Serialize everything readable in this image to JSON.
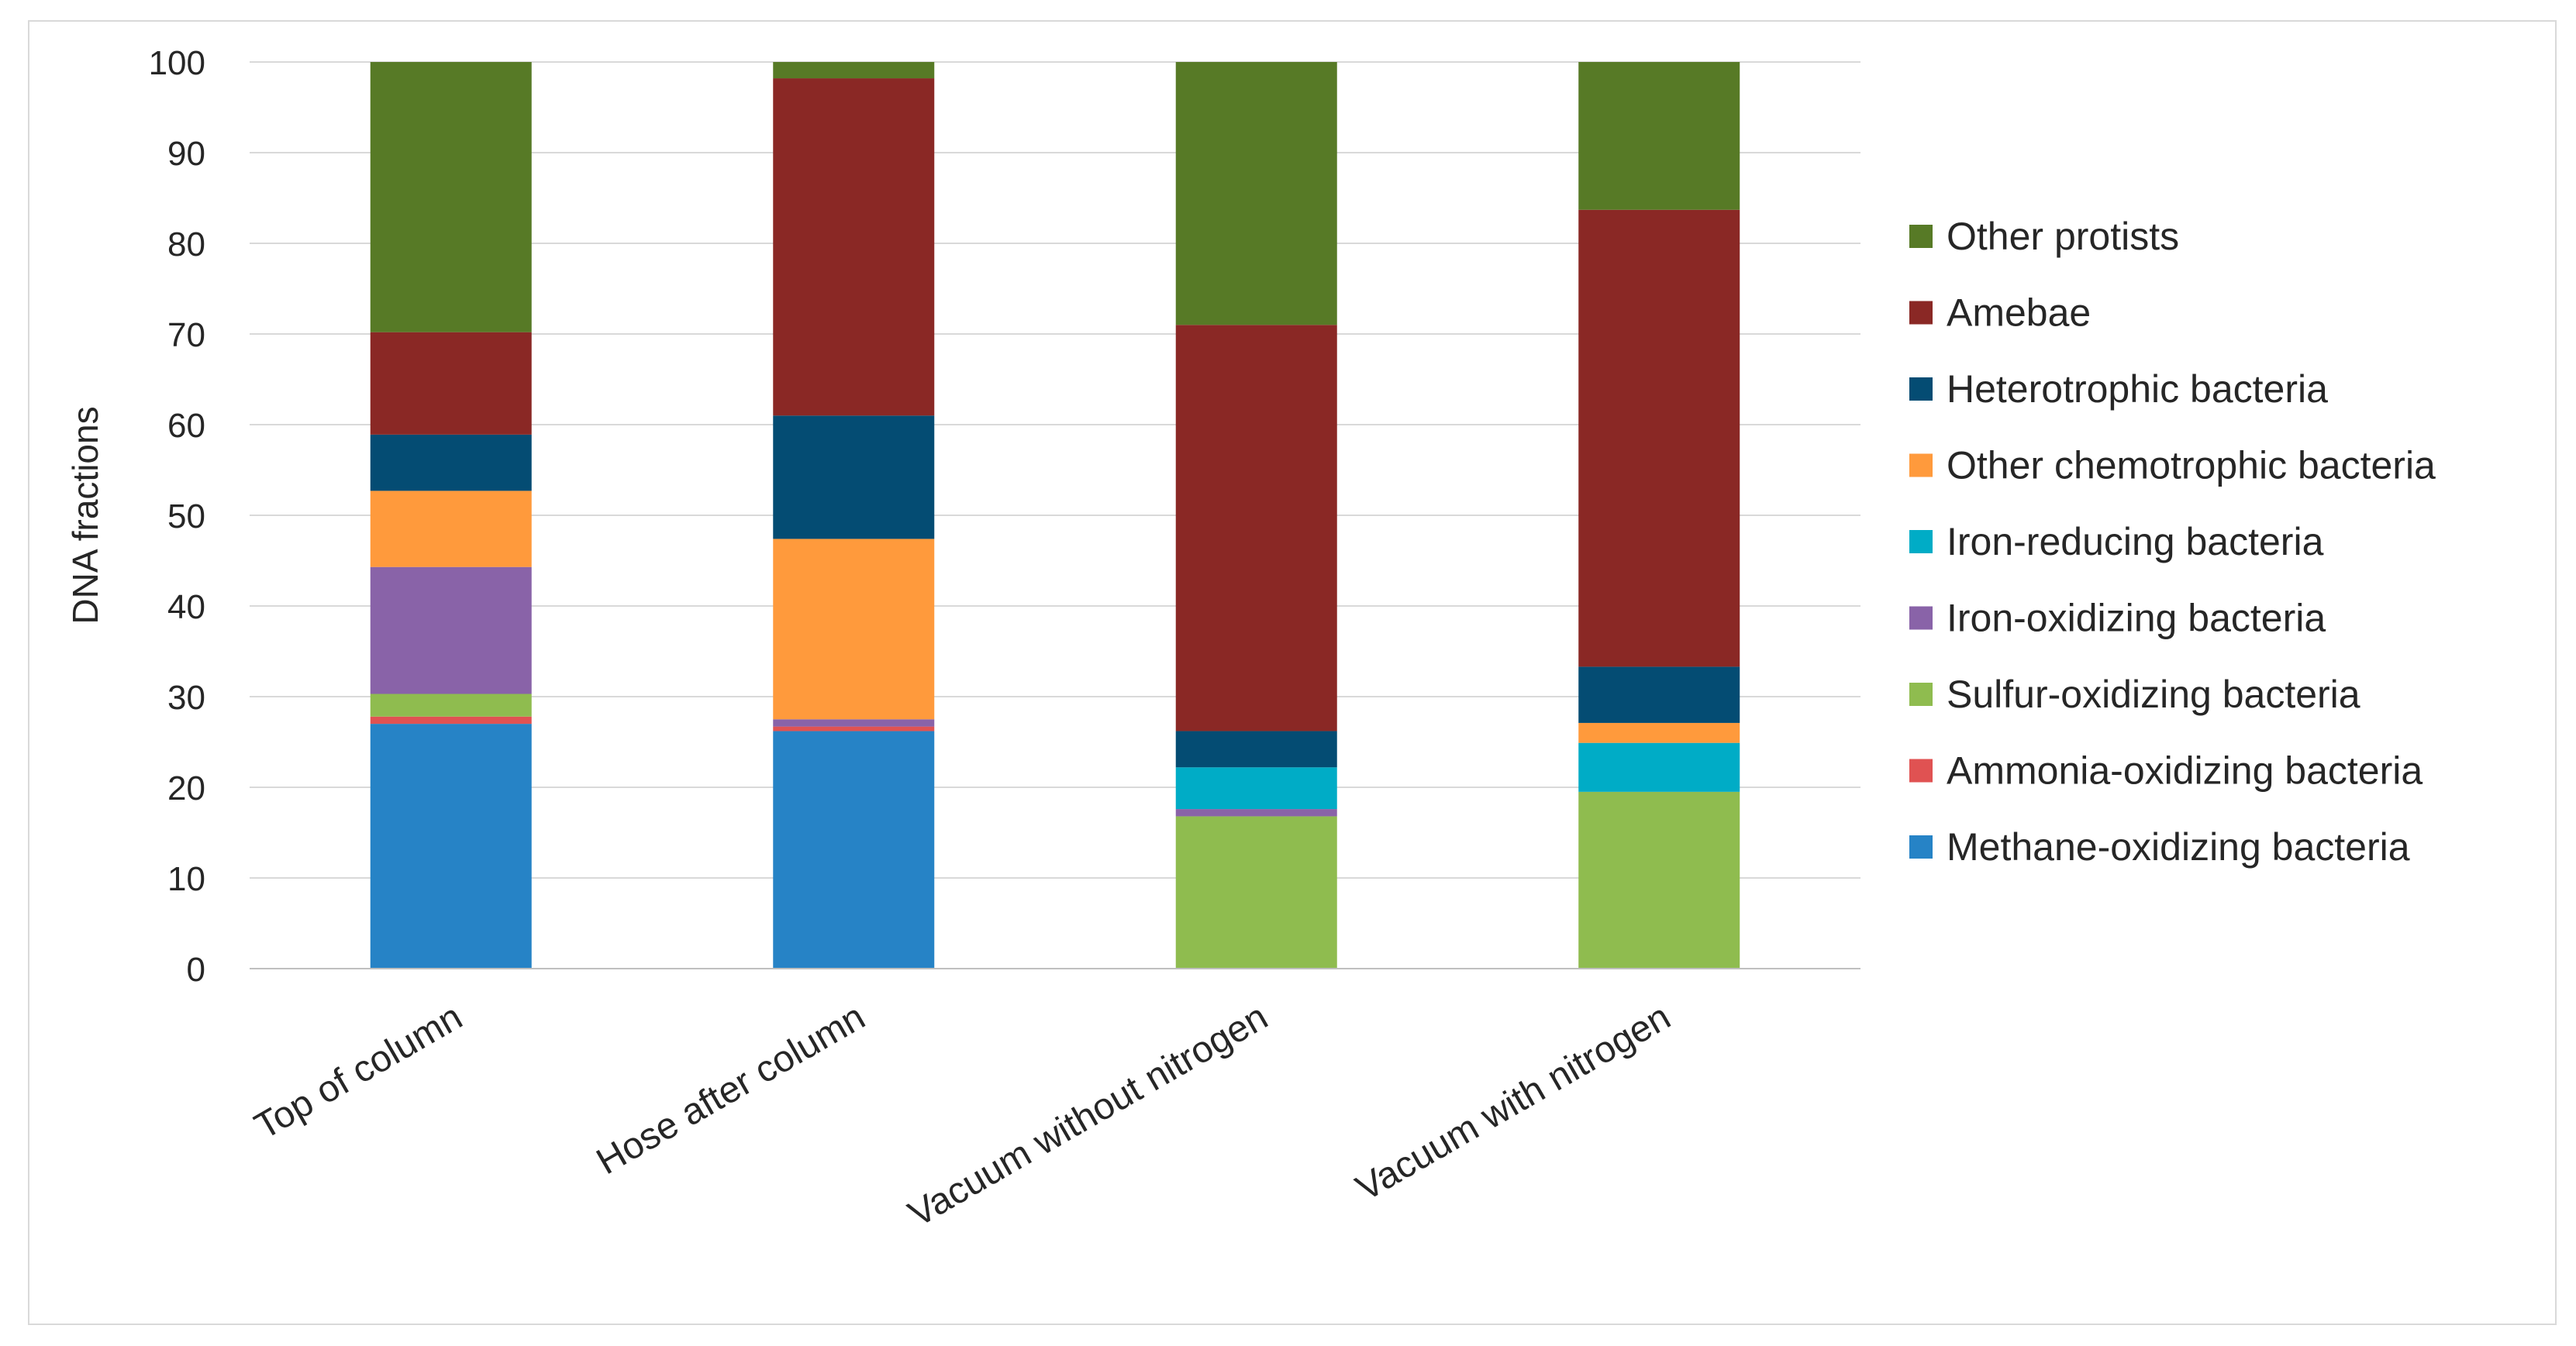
{
  "chart_data": {
    "type": "bar",
    "stacked": true,
    "title": "",
    "xlabel": "",
    "ylabel": "DNA fractions",
    "ylim": [
      0,
      100
    ],
    "yticks": [
      0,
      10,
      20,
      30,
      40,
      50,
      60,
      70,
      80,
      90,
      100
    ],
    "grid": true,
    "legend_position": "right",
    "categories": [
      "Top of column",
      "Hose after column",
      "Vacuum without nitrogen",
      "Vacuum with nitrogen"
    ],
    "series": [
      {
        "name": "Methane-oxidizing bacteria",
        "color": "#2683c6",
        "values": [
          27.0,
          26.2,
          0.0,
          0.0
        ]
      },
      {
        "name": "Ammonia-oxidizing bacteria",
        "color": "#e05252",
        "values": [
          0.8,
          0.5,
          0.0,
          0.0
        ]
      },
      {
        "name": "Sulfur-oxidizing bacteria",
        "color": "#8fbc4f",
        "values": [
          2.5,
          0.0,
          16.8,
          19.5
        ]
      },
      {
        "name": "Iron-oxidizing bacteria",
        "color": "#8963a8",
        "values": [
          14.0,
          0.8,
          0.8,
          0.0
        ]
      },
      {
        "name": "Iron-reducing bacteria",
        "color": "#00acc6",
        "values": [
          0.0,
          0.0,
          4.6,
          5.4
        ]
      },
      {
        "name": "Other chemotrophic bacteria",
        "color": "#ff9a3c",
        "values": [
          8.4,
          19.9,
          0.0,
          2.2
        ]
      },
      {
        "name": "Heterotrophic bacteria",
        "color": "#044c73",
        "values": [
          6.2,
          13.6,
          4.0,
          6.2
        ]
      },
      {
        "name": "Amebae",
        "color": "#8a2825",
        "values": [
          11.3,
          37.2,
          44.8,
          50.4
        ]
      },
      {
        "name": "Other protists",
        "color": "#577a26",
        "values": [
          29.8,
          1.8,
          29.0,
          16.3
        ]
      }
    ]
  }
}
